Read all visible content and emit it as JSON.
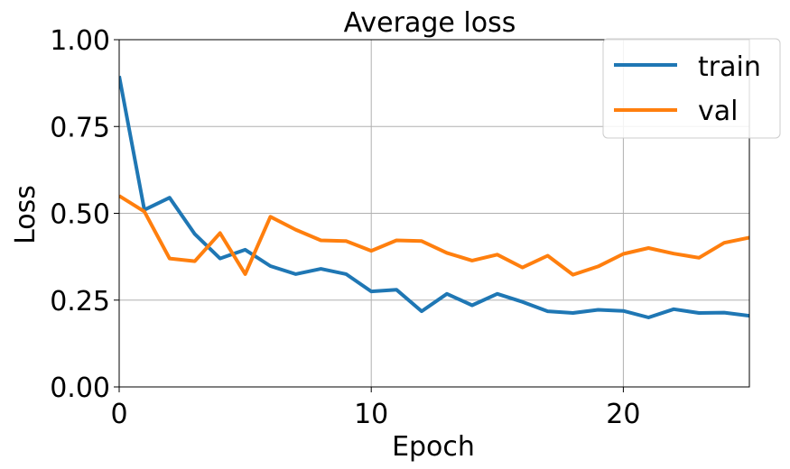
{
  "chart_data": {
    "type": "line",
    "title": "Average loss",
    "xlabel": "Epoch",
    "ylabel": "Loss",
    "xlim": [
      0,
      25
    ],
    "ylim": [
      0,
      1
    ],
    "xticks": [
      0,
      10,
      20
    ],
    "xtick_labels": [
      "0",
      "10",
      "20"
    ],
    "yticks": [
      0,
      0.25,
      0.5,
      0.75,
      1.0
    ],
    "ytick_labels": [
      "0.00",
      "0.25",
      "0.50",
      "0.75",
      "1.00"
    ],
    "grid": true,
    "legend_position": "top-right",
    "x": [
      0,
      1,
      2,
      3,
      4,
      5,
      6,
      7,
      8,
      9,
      10,
      11,
      12,
      13,
      14,
      15,
      16,
      17,
      18,
      19,
      20,
      21,
      22,
      23,
      24,
      25
    ],
    "series": [
      {
        "name": "train",
        "color": "#1f77b4",
        "values": [
          0.895,
          0.51,
          0.545,
          0.44,
          0.37,
          0.395,
          0.348,
          0.325,
          0.34,
          0.325,
          0.275,
          0.28,
          0.218,
          0.268,
          0.235,
          0.268,
          0.245,
          0.218,
          0.213,
          0.222,
          0.219,
          0.2,
          0.224,
          0.213,
          0.214,
          0.205
        ]
      },
      {
        "name": "val",
        "color": "#ff7f0e",
        "values": [
          0.55,
          0.505,
          0.37,
          0.362,
          0.443,
          0.325,
          0.49,
          0.453,
          0.422,
          0.42,
          0.392,
          0.422,
          0.42,
          0.386,
          0.364,
          0.381,
          0.344,
          0.378,
          0.323,
          0.347,
          0.383,
          0.4,
          0.384,
          0.372,
          0.415,
          0.43
        ]
      }
    ]
  }
}
